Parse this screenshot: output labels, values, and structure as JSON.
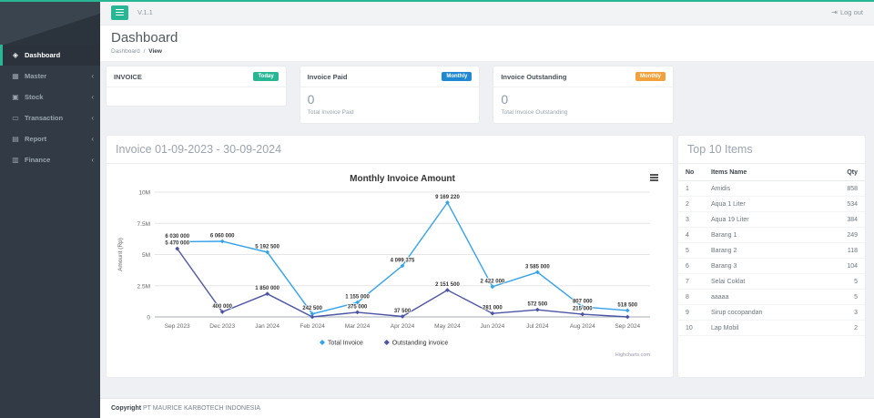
{
  "app": {
    "version": "V.1.1",
    "logout_label": "Log out",
    "logout_glyph": "⇥",
    "accent_color": "#28b794"
  },
  "sidebar": {
    "chevron_glyph": "‹",
    "items": [
      {
        "label": "Dashboard",
        "icon": "gem",
        "glyph": "◈",
        "active": true,
        "chevron": false
      },
      {
        "label": "Master",
        "icon": "table",
        "glyph": "▦",
        "active": false,
        "chevron": true
      },
      {
        "label": "Stock",
        "icon": "cubes",
        "glyph": "▣",
        "active": false,
        "chevron": true
      },
      {
        "label": "Transaction",
        "icon": "laptop",
        "glyph": "▭",
        "active": false,
        "chevron": true
      },
      {
        "label": "Report",
        "icon": "file",
        "glyph": "▤",
        "active": false,
        "chevron": true
      },
      {
        "label": "Finance",
        "icon": "money",
        "glyph": "▥",
        "active": false,
        "chevron": true
      }
    ]
  },
  "page": {
    "title": "Dashboard",
    "breadcrumb_parent": "Dashboard",
    "breadcrumb_separator": "/",
    "breadcrumb_current": "View"
  },
  "cards": [
    {
      "title": "INVOICE",
      "badge": "Today",
      "badge_color": "#28b794",
      "value": "",
      "caption": ""
    },
    {
      "title": "Invoice Paid",
      "badge": "Monthly",
      "badge_color": "#1e88d2",
      "value": "0",
      "caption": "Total Invoice Paid"
    },
    {
      "title": "Invoice Outstanding",
      "badge": "Monthly",
      "badge_color": "#f2a13c",
      "value": "0",
      "caption": "Total Invoice Outstanding"
    }
  ],
  "chart_panel": {
    "header": "Invoice 01-09-2023 - 30-09-2024",
    "credit": "Highcharts.com"
  },
  "chart_data": {
    "type": "line",
    "title": "Monthly Invoice Amount",
    "xlabel": "",
    "ylabel": "Amount (Rp)",
    "ylim": [
      0,
      10000000
    ],
    "ytick_labels": [
      "0",
      "2.5M",
      "5M",
      "7.5M",
      "10M"
    ],
    "grid": true,
    "legend_position": "bottom",
    "categories": [
      "Sep 2023",
      "Dec 2023",
      "Jan 2024",
      "Feb 2024",
      "Mar 2024",
      "Apr 2024",
      "May 2024",
      "Jun 2024",
      "Jul 2024",
      "Aug 2024",
      "Sep 2024"
    ],
    "series": [
      {
        "name": "Total Invoice",
        "color": "#34a3ec",
        "values": [
          6030000,
          6060000,
          5192500,
          242500,
          1155000,
          4099375,
          9169220,
          2422000,
          3585000,
          807000,
          518500
        ]
      },
      {
        "name": "Outstanding invoice",
        "color": "#4c55a5",
        "values": [
          5470000,
          400000,
          1850000,
          0,
          375000,
          37500,
          2151500,
          281000,
          572500,
          215000,
          0
        ]
      }
    ]
  },
  "top10": {
    "title": "Top 10 Items",
    "columns": [
      "No",
      "Items Name",
      "Qty"
    ],
    "rows": [
      [
        "1",
        "Amidis",
        "858"
      ],
      [
        "2",
        "Aqua 1 Liter",
        "534"
      ],
      [
        "3",
        "Aqua 19 Liter",
        "384"
      ],
      [
        "4",
        "Barang 1",
        "249"
      ],
      [
        "5",
        "Barang 2",
        "118"
      ],
      [
        "6",
        "Barang 3",
        "104"
      ],
      [
        "7",
        "Selai Coklat",
        "5"
      ],
      [
        "8",
        "aaaaa",
        "5"
      ],
      [
        "9",
        "Sirup cocopandan",
        "3"
      ],
      [
        "10",
        "Lap Mobil",
        "2"
      ]
    ]
  },
  "footer": {
    "bold": "Copyright",
    "text": "PT MAURICE KARBOTECH INDONESIA"
  }
}
